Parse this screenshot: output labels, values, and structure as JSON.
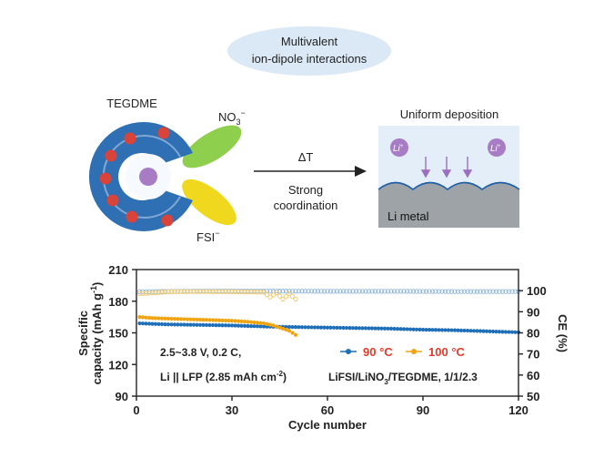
{
  "diagram": {
    "header_line1": "Multivalent",
    "header_line2": "ion-dipole interactions",
    "solvent_label": "TEGDME",
    "nitrate_label": "NO",
    "nitrate_sub": "3",
    "nitrate_sup": "−",
    "fsi_label": "FSI",
    "fsi_sup": "−",
    "arrow_top": "ΔT",
    "arrow_bottom_line1": "Strong",
    "arrow_bottom_line2": "coordination",
    "panel_title": "Uniform deposition",
    "li_ion": "Li",
    "li_ion_sup": "+",
    "li_metal": "Li metal"
  },
  "colors": {
    "header_bubble": "#dbe9f6",
    "shell": "#2f6fb3",
    "shell_inner": "#7fa8d6",
    "dots": "#d9443a",
    "core": "#a77cc4",
    "nitrate": "#8fcf4e",
    "fsi": "#f0d81e",
    "panel_bg": "#e3eef8",
    "metal": "#9ea3a8",
    "series_90": "#1f6fb8",
    "series_100": "#f0a410",
    "ce_90": "#8fb6de",
    "ce_100": "#f3c766"
  },
  "chart_data": {
    "type": "scatter",
    "xlabel": "Cycle number",
    "ylabel_line1": "Specific",
    "ylabel_line2": "capacity (mAh g",
    "ylabel_sup": "-1",
    "ylabel_end": ")",
    "y2label": "CE (%)",
    "xlim": [
      0,
      120
    ],
    "ylim": [
      90,
      210
    ],
    "y2lim": [
      50,
      110
    ],
    "xticks": [
      "0",
      "30",
      "60",
      "90",
      "120"
    ],
    "yticks": [
      "90",
      "120",
      "150",
      "180",
      "210"
    ],
    "y2ticks": [
      "50",
      "60",
      "70",
      "80",
      "90",
      "100"
    ],
    "conditions_line1": "2.5~3.8 V, 0.2 C,",
    "conditions_line2": "Li || LFP (2.85 mAh cm",
    "conditions_sup": "-2",
    "conditions_end": ")",
    "electrolyte": "LiFSI/LiNO",
    "electrolyte_sub": "3",
    "electrolyte_end": "/TEGDME, 1/1/2.3",
    "legend_position": "bottom-center",
    "series": [
      {
        "name": "90 °C",
        "axis": "left",
        "x": [
          1,
          10,
          20,
          30,
          40,
          50,
          60,
          70,
          80,
          90,
          100,
          110,
          120
        ],
        "values": [
          159,
          158,
          157.5,
          157,
          156,
          155.5,
          155,
          154.5,
          154,
          153,
          152.5,
          151.5,
          150.5
        ]
      },
      {
        "name": "100 °C",
        "axis": "left",
        "x": [
          1,
          5,
          10,
          15,
          20,
          25,
          30,
          35,
          40,
          43,
          46,
          48,
          50
        ],
        "values": [
          165,
          164,
          163.5,
          163,
          162.5,
          162,
          161.5,
          160.5,
          159,
          157,
          154,
          152,
          148
        ]
      },
      {
        "name": "CE 90 °C",
        "axis": "right",
        "x": [
          1,
          20,
          40,
          60,
          80,
          100,
          120
        ],
        "values": [
          99.5,
          99.8,
          99.8,
          99.7,
          99.7,
          99.6,
          99.6
        ]
      },
      {
        "name": "CE 100 °C",
        "axis": "right",
        "x": [
          1,
          10,
          20,
          30,
          40,
          42,
          44,
          46,
          48,
          50
        ],
        "values": [
          98.5,
          99.5,
          99.6,
          99.5,
          99.3,
          97,
          99,
          96,
          98.5,
          96
        ]
      }
    ]
  }
}
